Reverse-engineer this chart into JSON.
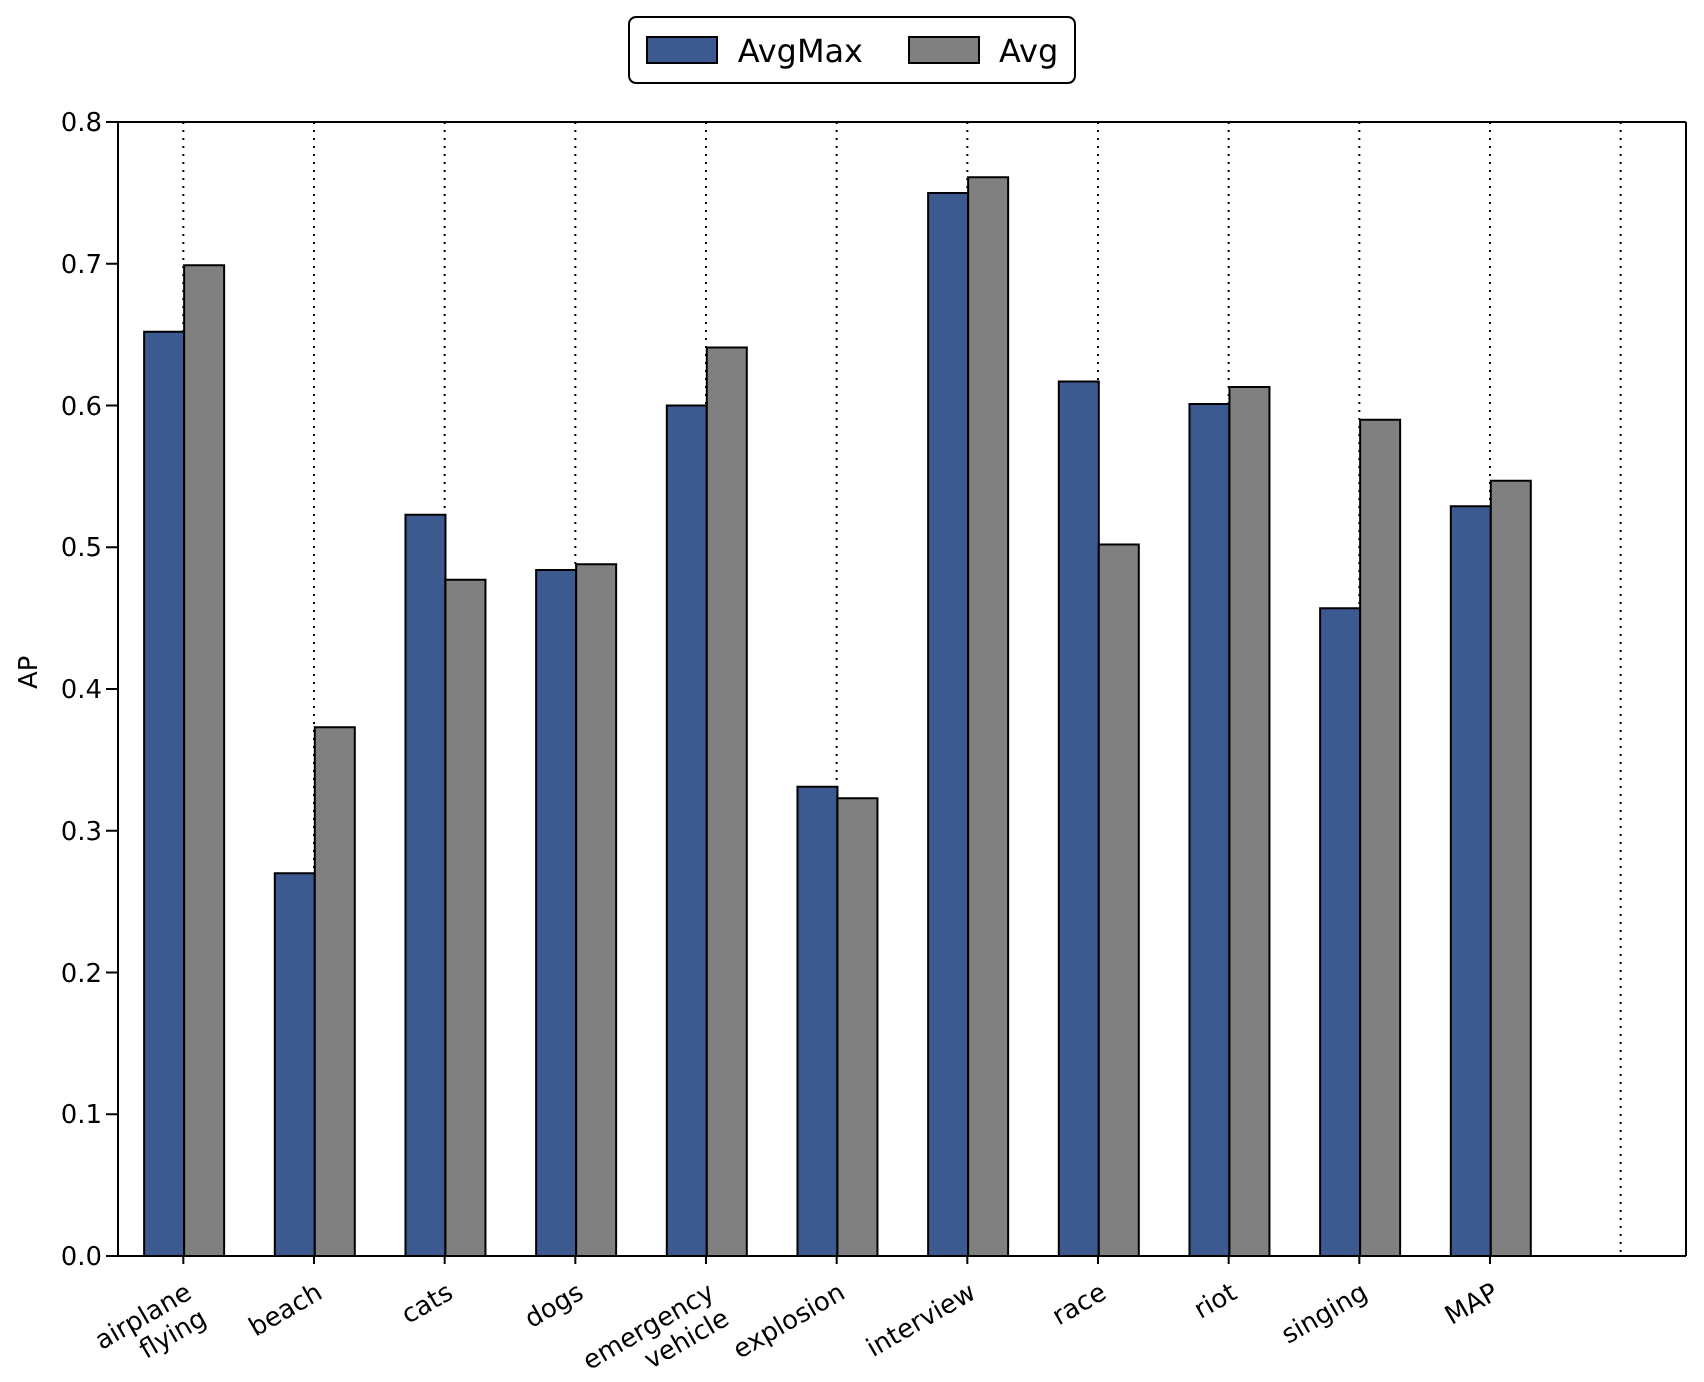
{
  "chart_data": {
    "type": "bar",
    "ylabel": "AP",
    "categories": [
      "airplane flying",
      "beach",
      "cats",
      "dogs",
      "emergency vehicle",
      "explosion",
      "interview",
      "race",
      "riot",
      "singing",
      "MAP"
    ],
    "series": [
      {
        "name": "AvgMax",
        "color": "#3c5a8f",
        "values": [
          0.652,
          0.27,
          0.523,
          0.484,
          0.6,
          0.331,
          0.75,
          0.617,
          0.601,
          0.457,
          0.529
        ]
      },
      {
        "name": "Avg",
        "color": "#808080",
        "values": [
          0.699,
          0.373,
          0.477,
          0.488,
          0.641,
          0.323,
          0.761,
          0.502,
          0.613,
          0.59,
          0.547
        ]
      }
    ],
    "ylim": [
      0,
      0.8
    ],
    "yticks": [
      {
        "value": 0,
        "label": "0.0"
      },
      {
        "value": 0.1,
        "label": "0.1"
      },
      {
        "value": 0.2,
        "label": "0.2"
      },
      {
        "value": 0.3,
        "label": "0.3"
      },
      {
        "value": 0.4,
        "label": "0.4"
      },
      {
        "value": 0.5,
        "label": "0.5"
      },
      {
        "value": 0.6,
        "label": "0.6"
      },
      {
        "value": 0.7,
        "label": "0.7"
      },
      {
        "value": 0.8,
        "label": "0.8"
      }
    ],
    "grid": true,
    "legend": "top"
  }
}
